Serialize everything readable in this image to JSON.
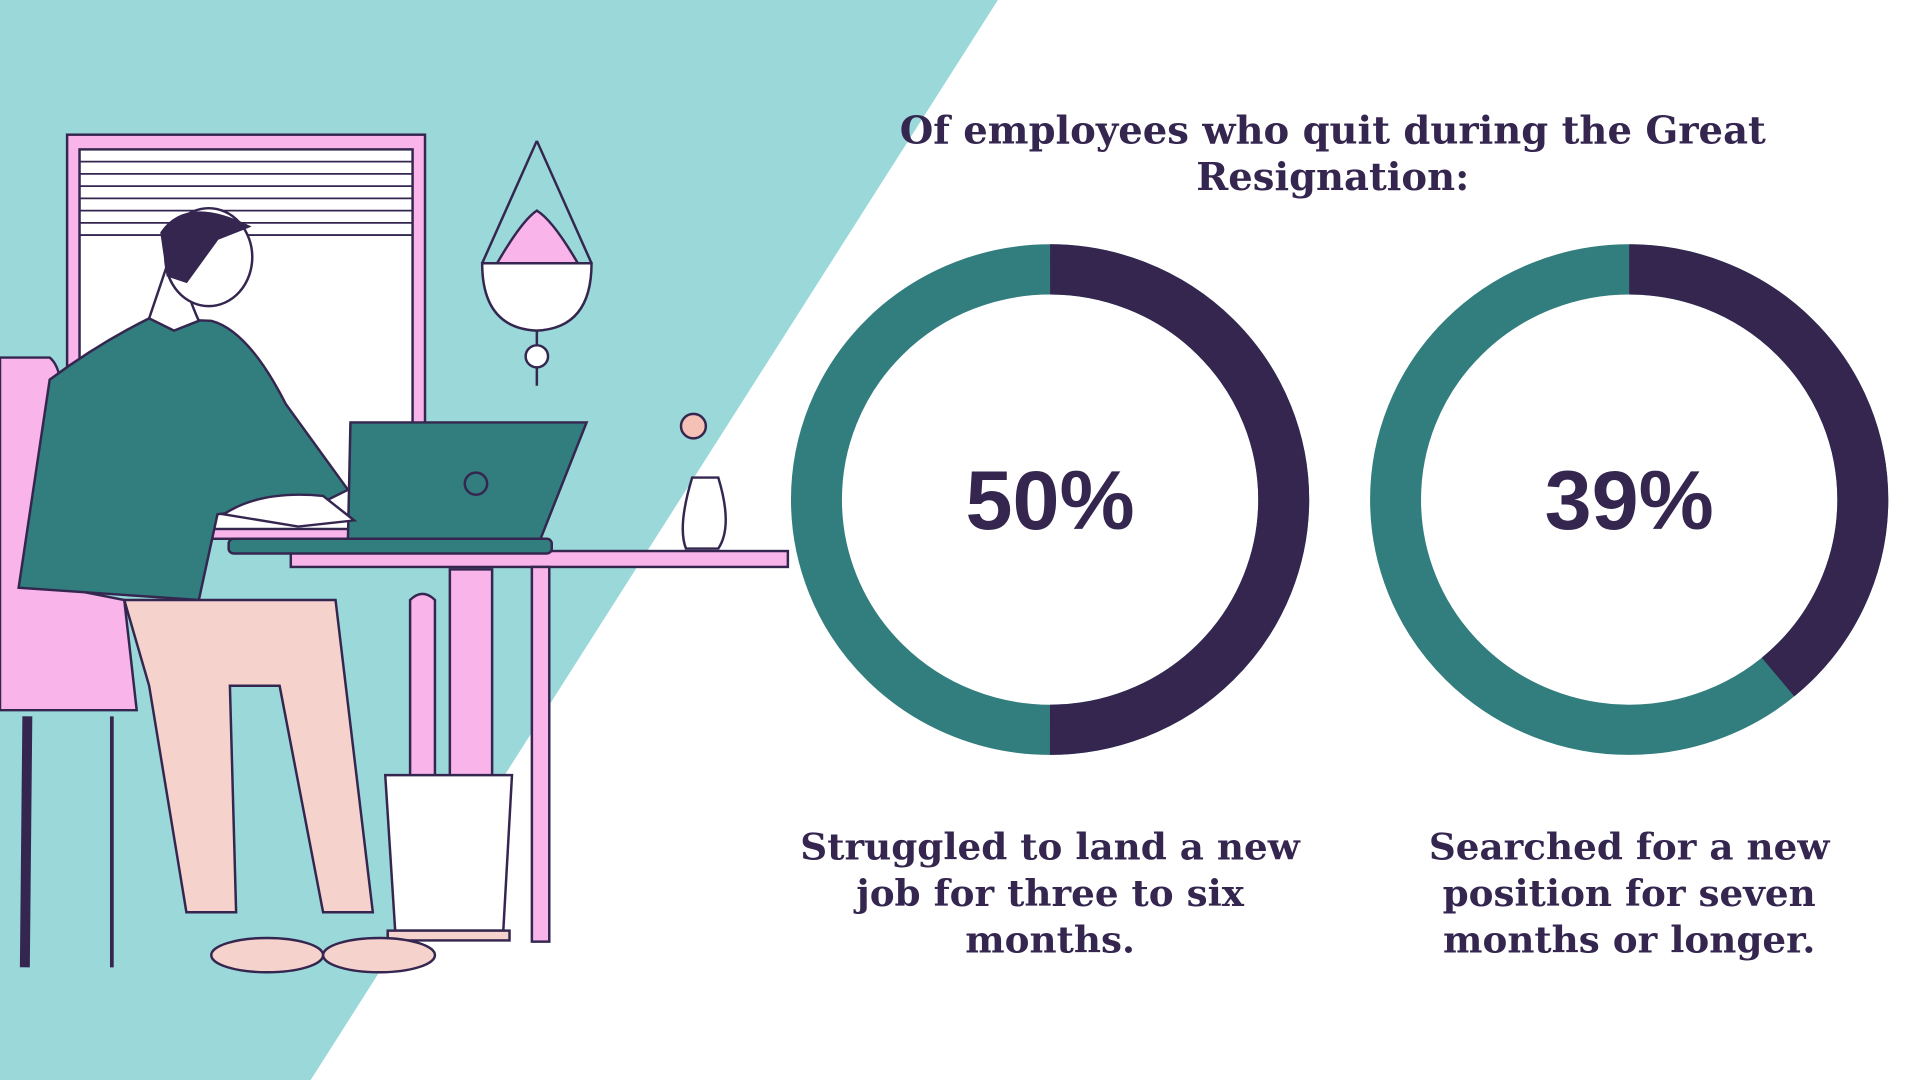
{
  "title": "Of employees who quit during the Great Resignation:",
  "colors": {
    "dark": "#352650",
    "teal": "#327d7d",
    "background_teal": "#9ad8da",
    "pink": "#f9b4ea"
  },
  "chart_data": [
    {
      "type": "pie",
      "style": "donut",
      "values": [
        50,
        50
      ],
      "highlight_color": "#352650",
      "rest_color": "#327d7d",
      "label": "50%",
      "caption": "Struggled to land a new job for three to six months."
    },
    {
      "type": "pie",
      "style": "donut",
      "values": [
        39,
        61
      ],
      "highlight_color": "#352650",
      "rest_color": "#327d7d",
      "label": "39%",
      "caption": "Searched for a new position for seven months or longer."
    }
  ]
}
